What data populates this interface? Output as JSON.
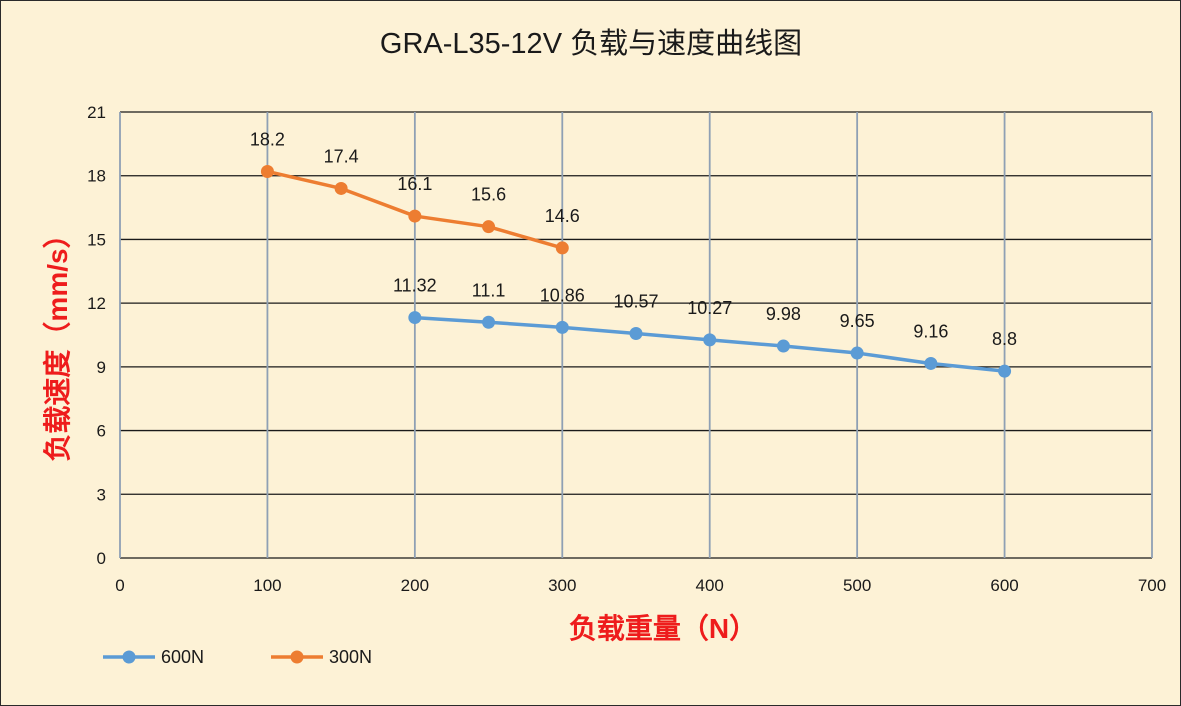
{
  "chart_data": {
    "type": "line",
    "title": "GRA-L35-12V 负载与速度曲线图",
    "xlabel": "负载重量（N）",
    "ylabel": "负载速度（mm/s）",
    "xlim": [
      0,
      700
    ],
    "ylim": [
      0,
      21
    ],
    "x_ticks": [
      "0",
      "100",
      "200",
      "300",
      "400",
      "500",
      "600",
      "700"
    ],
    "y_ticks": [
      "0",
      "3",
      "6",
      "9",
      "12",
      "15",
      "18",
      "21"
    ],
    "grid": true,
    "legend_position": "bottom-left",
    "series": [
      {
        "name": "600N",
        "color": "#5b9bd5",
        "x": [
          200,
          250,
          300,
          350,
          400,
          450,
          500,
          550,
          600
        ],
        "values": [
          11.32,
          11.1,
          10.86,
          10.57,
          10.27,
          9.98,
          9.65,
          9.16,
          8.8
        ],
        "labels": [
          "11.32",
          "11.1",
          "10.86",
          "10.57",
          "10.27",
          "9.98",
          "9.65",
          "9.16",
          "8.8"
        ]
      },
      {
        "name": "300N",
        "color": "#ed7d31",
        "x": [
          100,
          150,
          200,
          250,
          300
        ],
        "values": [
          18.2,
          17.4,
          16.1,
          15.6,
          14.6
        ],
        "labels": [
          "18.2",
          "17.4",
          "16.1",
          "15.6",
          "14.6"
        ]
      }
    ]
  }
}
